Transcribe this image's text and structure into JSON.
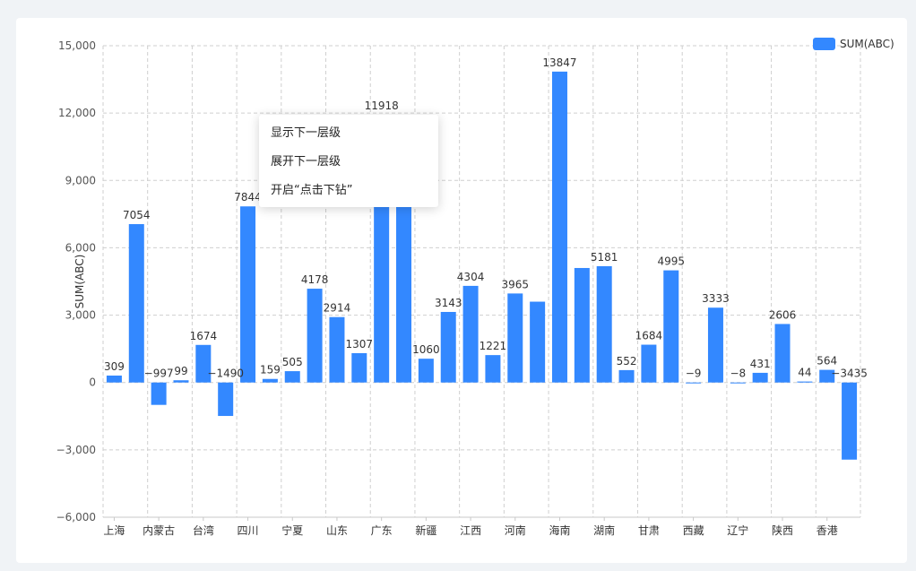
{
  "chart_data": {
    "type": "bar",
    "ylabel": "SUM(ABC)",
    "xlabel": "",
    "ylim": [
      -6000,
      15000
    ],
    "yticks": [
      -6000,
      -3000,
      0,
      3000,
      6000,
      9000,
      12000,
      15000
    ],
    "ytick_labels": [
      "−6,000",
      "−3,000",
      "0",
      "3,000",
      "6,000",
      "9,000",
      "12,000",
      "15,000"
    ],
    "grid": true,
    "legend_position": "top-right",
    "series": [
      {
        "name": "SUM(ABC)",
        "color": "#3388ff",
        "values": [
          309,
          7054,
          -997,
          99,
          1674,
          -1490,
          7844,
          159,
          505,
          4178,
          2914,
          1307,
          11918,
          8200,
          1060,
          3143,
          4304,
          1221,
          3965,
          3600,
          13847,
          5100,
          5181,
          552,
          1684,
          4995,
          -9,
          3333,
          -8,
          431,
          2606,
          44,
          564,
          -3435
        ],
        "value_labels": [
          "309",
          "7054",
          "−997",
          "99",
          "1674",
          "−1490",
          "7844",
          "159",
          "505",
          "4178",
          "2914",
          "1307",
          "11918",
          "",
          "1060",
          "3143",
          "4304",
          "1221",
          "3965",
          "",
          "13847",
          "",
          "5181",
          "552",
          "1684",
          "4995",
          "−9",
          "3333",
          "−8",
          "431",
          "2606",
          "44",
          "564",
          "−3435"
        ]
      }
    ],
    "categories": [
      "上海",
      "",
      "内蒙古",
      "",
      "台湾",
      "",
      "四川",
      "",
      "宁夏",
      "",
      "山东",
      "",
      "广东",
      "",
      "新疆",
      "",
      "江西",
      "",
      "河南",
      "",
      "海南",
      "",
      "湖南",
      "",
      "甘肃",
      "",
      "西藏",
      "",
      "辽宁",
      "",
      "陕西",
      "",
      "香港",
      ""
    ]
  },
  "context_menu": {
    "items": [
      "显示下一层级",
      "展开下一层级",
      "开启“点击下钻”"
    ]
  }
}
